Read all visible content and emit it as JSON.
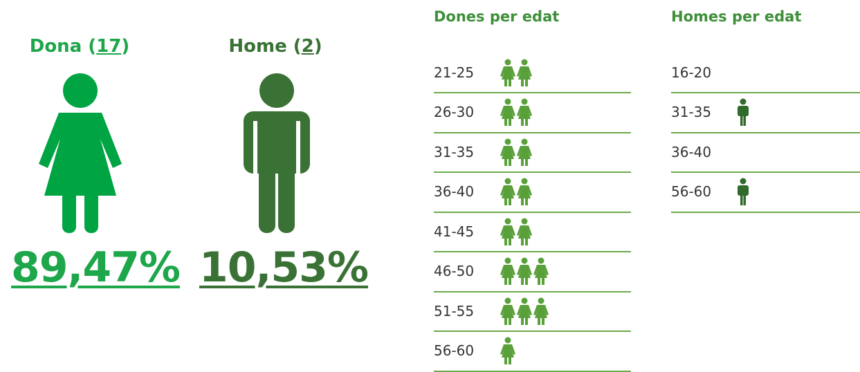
{
  "gender": [
    {
      "label": "Dona",
      "count": 17,
      "percent": "89,47%"
    },
    {
      "label": "Home",
      "count": 2,
      "percent": "10,53%"
    }
  ],
  "women_by_age": {
    "title": "Dones per edat",
    "rows": [
      {
        "age": "21-25",
        "count": 2
      },
      {
        "age": "26-30",
        "count": 2
      },
      {
        "age": "31-35",
        "count": 2
      },
      {
        "age": "36-40",
        "count": 2
      },
      {
        "age": "41-45",
        "count": 2
      },
      {
        "age": "46-50",
        "count": 3
      },
      {
        "age": "51-55",
        "count": 3
      },
      {
        "age": "56-60",
        "count": 1
      }
    ]
  },
  "men_by_age": {
    "title": "Homes per edat",
    "rows": [
      {
        "age": "16-20",
        "count": 0
      },
      {
        "age": "31-35",
        "count": 1
      },
      {
        "age": "36-40",
        "count": 0
      },
      {
        "age": "56-60",
        "count": 1
      }
    ]
  }
}
